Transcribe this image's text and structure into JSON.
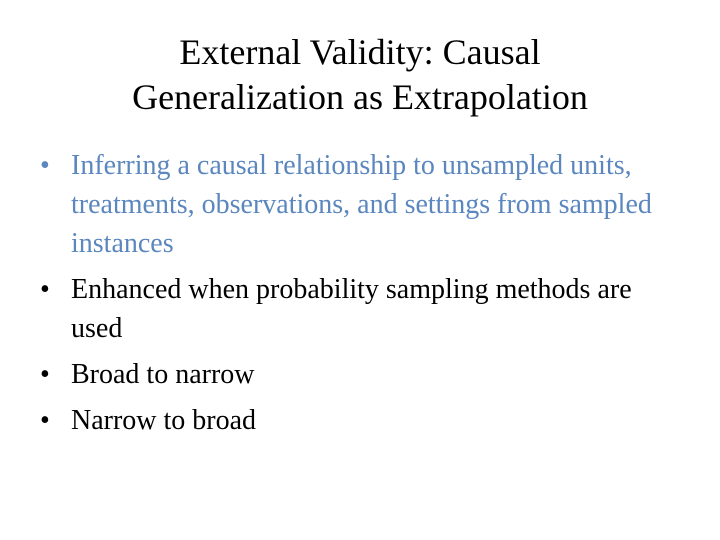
{
  "slide": {
    "title_line1": "External Validity: Causal",
    "title_line2": "Generalization as Extrapolation",
    "bullet_char": "•",
    "highlight_color": "#5b87be",
    "bullets": [
      {
        "text": "Inferring a causal relationship to unsampled units, treatments, observations, and settings from sampled instances",
        "highlighted": true
      },
      {
        "text": "Enhanced when probability sampling methods are used",
        "highlighted": false
      },
      {
        "text": "Broad to narrow",
        "highlighted": false
      },
      {
        "text": "Narrow to broad",
        "highlighted": false
      }
    ]
  }
}
